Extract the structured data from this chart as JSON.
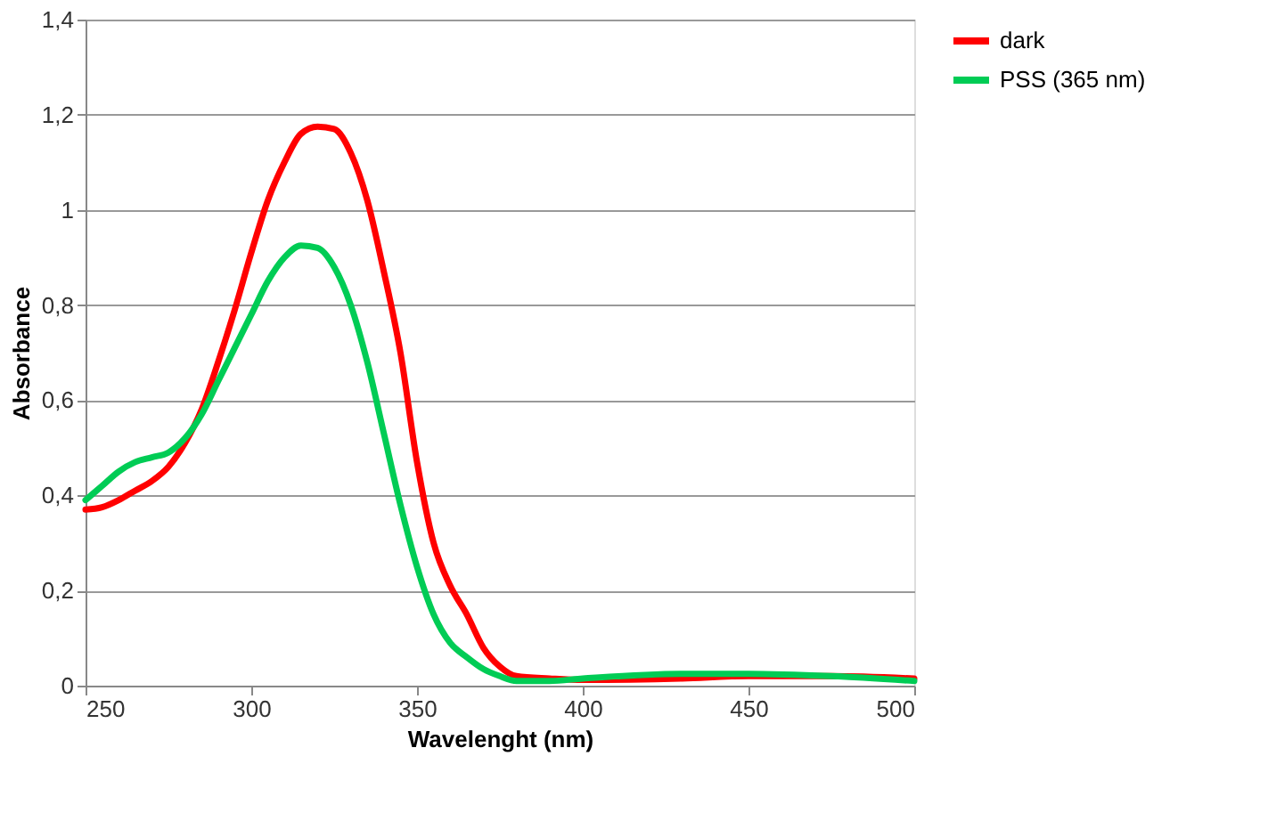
{
  "chart_data": {
    "type": "line",
    "xlabel": "Wavelenght (nm)",
    "ylabel": "Absorbance",
    "xlim": [
      250,
      500
    ],
    "xticks": [
      250,
      300,
      350,
      400,
      450,
      500
    ],
    "ylim": [
      0,
      1.4
    ],
    "yticks": [
      0,
      {
        "value": 0.2,
        "label": "0,2"
      },
      {
        "value": 0.4,
        "label": "0,4"
      },
      {
        "value": 0.6,
        "label": "0,6"
      },
      {
        "value": 0.8,
        "label": "0,8"
      },
      1,
      {
        "value": 1.2,
        "label": "1,2"
      },
      {
        "value": 1.4,
        "label": "1,4"
      }
    ],
    "grid": "y",
    "legend": "right",
    "marker": "none",
    "line_style": "solid",
    "x": [
      250,
      255,
      260,
      265,
      270,
      275,
      280,
      285,
      290,
      295,
      300,
      305,
      310,
      315,
      320,
      325,
      330,
      335,
      340,
      345,
      350,
      355,
      360,
      365,
      370,
      375,
      380,
      390,
      400,
      430,
      450,
      475,
      500
    ],
    "series": [
      {
        "name": "dark",
        "color": "#ff0000",
        "values": [
          0.37,
          0.375,
          0.39,
          0.41,
          0.43,
          0.46,
          0.51,
          0.58,
          0.68,
          0.79,
          0.91,
          1.02,
          1.1,
          1.16,
          1.175,
          1.17,
          1.12,
          1.02,
          0.87,
          0.7,
          0.47,
          0.3,
          0.21,
          0.15,
          0.08,
          0.04,
          0.02,
          0.015,
          0.012,
          0.015,
          0.02,
          0.02,
          0.015
        ]
      },
      {
        "name": "PSS (365 nm)",
        "color": "#00cc55",
        "values": [
          0.39,
          0.42,
          0.45,
          0.47,
          0.48,
          0.49,
          0.52,
          0.57,
          0.64,
          0.71,
          0.78,
          0.85,
          0.9,
          0.925,
          0.92,
          0.88,
          0.8,
          0.68,
          0.53,
          0.38,
          0.25,
          0.15,
          0.09,
          0.06,
          0.035,
          0.02,
          0.01,
          0.01,
          0.015,
          0.025,
          0.025,
          0.02,
          0.01
        ]
      }
    ]
  }
}
